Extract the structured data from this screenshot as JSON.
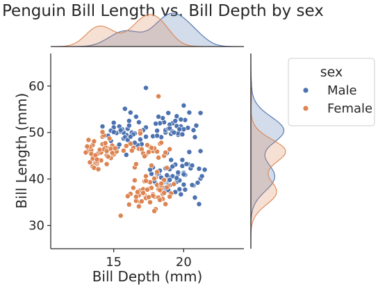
{
  "chart_data": {
    "type": "scatter",
    "title": "Penguin Bill Length vs. Bill Depth by sex",
    "xlabel": "Bill Depth (mm)",
    "ylabel": "Bill Length (mm)",
    "xlim": [
      10.5,
      24.3
    ],
    "ylim": [
      25,
      67
    ],
    "xticks": [
      15,
      20
    ],
    "yticks": [
      30,
      40,
      50,
      60
    ],
    "grid": false,
    "legend": {
      "title": "sex",
      "placement": "upper-right-outside"
    },
    "marginals": {
      "top": "kde",
      "right": "kde"
    },
    "series": [
      {
        "name": "Male",
        "color": "#4c72b0",
        "points": [
          [
            18.0,
            39.1
          ],
          [
            19.5,
            39.4
          ],
          [
            21.2,
            46.0
          ],
          [
            18.8,
            39.2
          ],
          [
            19.6,
            41.1
          ],
          [
            20.7,
            38.6
          ],
          [
            21.1,
            42.2
          ],
          [
            18.6,
            37.8
          ],
          [
            20.6,
            38.7
          ],
          [
            21.5,
            42.0
          ],
          [
            19.2,
            40.6
          ],
          [
            18.9,
            40.5
          ],
          [
            19.4,
            37.2
          ],
          [
            20.1,
            40.9
          ],
          [
            18.5,
            39.2
          ],
          [
            19.0,
            39.8
          ],
          [
            20.3,
            43.2
          ],
          [
            18.8,
            40.8
          ],
          [
            19.9,
            44.1
          ],
          [
            21.2,
            40.1
          ],
          [
            17.8,
            42.5
          ],
          [
            20.0,
            41.3
          ],
          [
            18.6,
            39.6
          ],
          [
            20.5,
            42.3
          ],
          [
            18.9,
            37.6
          ],
          [
            17.7,
            41.1
          ],
          [
            20.1,
            37.7
          ],
          [
            19.0,
            42.1
          ],
          [
            19.6,
            41.4
          ],
          [
            19.4,
            43.1
          ],
          [
            18.2,
            41.5
          ],
          [
            19.7,
            39.7
          ],
          [
            18.5,
            38.2
          ],
          [
            19.9,
            42.8
          ],
          [
            18.9,
            38.8
          ],
          [
            20.8,
            36.0
          ],
          [
            18.2,
            41.0
          ],
          [
            19.1,
            44.1
          ],
          [
            21.3,
            40.6
          ],
          [
            17.9,
            39.5
          ],
          [
            18.6,
            39.6
          ],
          [
            20.2,
            43.2
          ],
          [
            19.5,
            40.2
          ],
          [
            18.3,
            41.8
          ],
          [
            20.0,
            41.0
          ],
          [
            19.0,
            38.6
          ],
          [
            18.1,
            41.1
          ],
          [
            18.7,
            42.3
          ],
          [
            19.3,
            39.0
          ],
          [
            20.4,
            45.8
          ],
          [
            21.1,
            34.6
          ],
          [
            19.8,
            36.7
          ],
          [
            20.6,
            42.9
          ],
          [
            18.4,
            40.3
          ],
          [
            19.7,
            37.8
          ],
          [
            21.0,
            39.2
          ],
          [
            17.6,
            42.0
          ],
          [
            18.8,
            45.6
          ],
          [
            20.0,
            38.8
          ],
          [
            19.2,
            42.7
          ],
          [
            18.7,
            50.0
          ],
          [
            17.3,
            51.1
          ],
          [
            19.2,
            52.0
          ],
          [
            18.7,
            50.5
          ],
          [
            19.6,
            49.5
          ],
          [
            18.1,
            50.4
          ],
          [
            19.8,
            51.3
          ],
          [
            18.9,
            50.8
          ],
          [
            20.1,
            52.7
          ],
          [
            19.0,
            51.7
          ],
          [
            19.5,
            53.5
          ],
          [
            18.4,
            49.0
          ],
          [
            19.0,
            50.9
          ],
          [
            20.7,
            50.5
          ],
          [
            19.8,
            52.8
          ],
          [
            18.9,
            54.2
          ],
          [
            20.3,
            51.0
          ],
          [
            19.1,
            49.7
          ],
          [
            18.6,
            52.2
          ],
          [
            20.0,
            50.7
          ],
          [
            17.8,
            49.2
          ],
          [
            19.2,
            50.2
          ],
          [
            18.1,
            49.3
          ],
          [
            19.5,
            51.4
          ],
          [
            19.4,
            52.5
          ],
          [
            20.8,
            49.0
          ],
          [
            18.3,
            52.0
          ],
          [
            19.6,
            49.8
          ],
          [
            20.9,
            51.5
          ],
          [
            20.0,
            55.8
          ],
          [
            19.7,
            50.7
          ],
          [
            18.5,
            53.1
          ],
          [
            20.4,
            54.3
          ],
          [
            19.9,
            49.6
          ],
          [
            21.2,
            54.2
          ],
          [
            18.0,
            51.9
          ],
          [
            19.3,
            50.0
          ],
          [
            18.2,
            53.4
          ],
          [
            15.7,
            48.7
          ],
          [
            16.3,
            50.0
          ],
          [
            17.1,
            50.5
          ],
          [
            15.2,
            49.9
          ],
          [
            16.0,
            50.8
          ],
          [
            15.0,
            52.1
          ],
          [
            15.9,
            49.5
          ],
          [
            16.8,
            52.2
          ],
          [
            15.5,
            50.2
          ],
          [
            14.3,
            49.2
          ],
          [
            15.8,
            49.0
          ],
          [
            16.1,
            52.5
          ],
          [
            15.7,
            50.0
          ],
          [
            15.0,
            51.1
          ],
          [
            16.5,
            49.8
          ],
          [
            15.6,
            50.7
          ],
          [
            16.9,
            48.5
          ],
          [
            15.4,
            51.3
          ],
          [
            16.2,
            54.3
          ],
          [
            15.8,
            55.1
          ],
          [
            16.4,
            49.6
          ],
          [
            14.8,
            50.4
          ],
          [
            17.0,
            47.5
          ],
          [
            15.3,
            46.9
          ],
          [
            16.0,
            48.4
          ],
          [
            15.5,
            50.5
          ],
          [
            16.7,
            47.3
          ],
          [
            14.2,
            51.3
          ],
          [
            16.6,
            53.4
          ],
          [
            15.1,
            46.2
          ],
          [
            16.2,
            49.1
          ],
          [
            15.9,
            45.2
          ],
          [
            14.6,
            49.3
          ],
          [
            17.3,
            49.1
          ],
          [
            14.8,
            48.2
          ],
          [
            15.4,
            47.4
          ],
          [
            16.5,
            47.8
          ],
          [
            15.0,
            50.1
          ],
          [
            16.1,
            51.5
          ],
          [
            17.3,
            59.6
          ]
        ]
      },
      {
        "name": "Female",
        "color": "#dd8452",
        "points": [
          [
            17.4,
            39.5
          ],
          [
            18.0,
            40.3
          ],
          [
            17.8,
            36.7
          ],
          [
            19.3,
            38.9
          ],
          [
            17.6,
            39.3
          ],
          [
            18.4,
            37.8
          ],
          [
            17.2,
            36.6
          ],
          [
            18.1,
            38.7
          ],
          [
            17.3,
            35.9
          ],
          [
            16.6,
            35.3
          ],
          [
            18.2,
            37.8
          ],
          [
            17.0,
            37.3
          ],
          [
            18.5,
            36.8
          ],
          [
            17.9,
            36.2
          ],
          [
            16.8,
            36.5
          ],
          [
            18.4,
            38.6
          ],
          [
            16.1,
            34.5
          ],
          [
            18.3,
            37.6
          ],
          [
            17.5,
            37.9
          ],
          [
            17.1,
            36.9
          ],
          [
            18.2,
            36.0
          ],
          [
            17.2,
            39.5
          ],
          [
            18.9,
            38.5
          ],
          [
            16.9,
            37.5
          ],
          [
            17.8,
            36.4
          ],
          [
            18.6,
            37.0
          ],
          [
            17.3,
            39.6
          ],
          [
            18.0,
            33.5
          ],
          [
            16.6,
            36.2
          ],
          [
            17.1,
            37.8
          ],
          [
            19.1,
            36.9
          ],
          [
            16.9,
            35.1
          ],
          [
            17.7,
            38.1
          ],
          [
            18.5,
            35.7
          ],
          [
            16.7,
            37.2
          ],
          [
            17.9,
            40.2
          ],
          [
            17.0,
            35.2
          ],
          [
            18.7,
            34.6
          ],
          [
            16.2,
            36.8
          ],
          [
            18.6,
            39.8
          ],
          [
            17.5,
            36.1
          ],
          [
            17.3,
            40.6
          ],
          [
            16.4,
            38.1
          ],
          [
            18.4,
            39.0
          ],
          [
            17.6,
            35.0
          ],
          [
            18.8,
            38.2
          ],
          [
            16.0,
            36.3
          ],
          [
            17.4,
            37.7
          ],
          [
            18.1,
            41.5
          ],
          [
            17.7,
            42.9
          ],
          [
            16.5,
            39.7
          ],
          [
            17.9,
            40.1
          ],
          [
            18.3,
            35.5
          ],
          [
            16.8,
            34.1
          ],
          [
            19.0,
            36.2
          ],
          [
            17.1,
            37.0
          ],
          [
            17.9,
            33.1
          ],
          [
            15.5,
            32.1
          ],
          [
            18.2,
            57.8
          ],
          [
            13.2,
            46.1
          ],
          [
            13.4,
            46.2
          ],
          [
            14.5,
            45.1
          ],
          [
            13.7,
            44.9
          ],
          [
            14.2,
            47.5
          ],
          [
            13.9,
            45.5
          ],
          [
            14.6,
            46.6
          ],
          [
            13.8,
            43.3
          ],
          [
            14.1,
            45.7
          ],
          [
            13.5,
            47.3
          ],
          [
            14.8,
            44.5
          ],
          [
            13.3,
            46.9
          ],
          [
            14.2,
            49.1
          ],
          [
            13.7,
            43.5
          ],
          [
            14.4,
            46.8
          ],
          [
            13.9,
            44.1
          ],
          [
            14.7,
            48.7
          ],
          [
            13.5,
            42.7
          ],
          [
            14.3,
            46.4
          ],
          [
            13.6,
            48.1
          ],
          [
            15.0,
            45.3
          ],
          [
            13.1,
            47.0
          ],
          [
            14.1,
            44.0
          ],
          [
            14.5,
            46.0
          ],
          [
            13.4,
            45.4
          ],
          [
            14.9,
            47.2
          ],
          [
            13.8,
            43.8
          ],
          [
            14.3,
            49.4
          ],
          [
            13.0,
            45.7
          ],
          [
            14.6,
            44.8
          ],
          [
            14.0,
            46.3
          ],
          [
            13.6,
            42.4
          ],
          [
            15.2,
            45.9
          ],
          [
            13.3,
            43.6
          ],
          [
            14.4,
            47.7
          ],
          [
            13.9,
            42.1
          ],
          [
            14.8,
            46.5
          ],
          [
            13.5,
            44.4
          ],
          [
            14.2,
            50.1
          ],
          [
            13.7,
            45.1
          ],
          [
            14.5,
            43.2
          ],
          [
            13.2,
            48.4
          ],
          [
            14.9,
            45.6
          ],
          [
            13.8,
            44.2
          ],
          [
            15.1,
            46.6
          ],
          [
            17.8,
            46.0
          ],
          [
            16.8,
            46.5
          ],
          [
            18.1,
            45.9
          ],
          [
            17.3,
            45.2
          ],
          [
            17.0,
            46.4
          ],
          [
            16.5,
            42.5
          ],
          [
            18.3,
            47.6
          ],
          [
            17.6,
            46.9
          ],
          [
            18.8,
            42.4
          ],
          [
            16.6,
            43.2
          ],
          [
            17.9,
            46.6
          ],
          [
            17.1,
            45.5
          ],
          [
            18.2,
            44.6
          ],
          [
            16.4,
            46.7
          ],
          [
            17.5,
            45.8
          ],
          [
            18.4,
            47.8
          ],
          [
            17.2,
            44.9
          ],
          [
            16.3,
            46.1
          ],
          [
            16.9,
            50.3
          ],
          [
            16.9,
            49.8
          ],
          [
            17.7,
            46.7
          ],
          [
            18.6,
            45.0
          ],
          [
            19.0,
            46.4
          ],
          [
            17.4,
            47.3
          ],
          [
            15.7,
            46.1
          ],
          [
            16.2,
            47.6
          ],
          [
            15.9,
            47.1
          ],
          [
            18.7,
            45.7
          ]
        ]
      }
    ]
  },
  "colors": {
    "male": "#4c72b0",
    "female": "#dd8452",
    "axis": "#262626"
  }
}
